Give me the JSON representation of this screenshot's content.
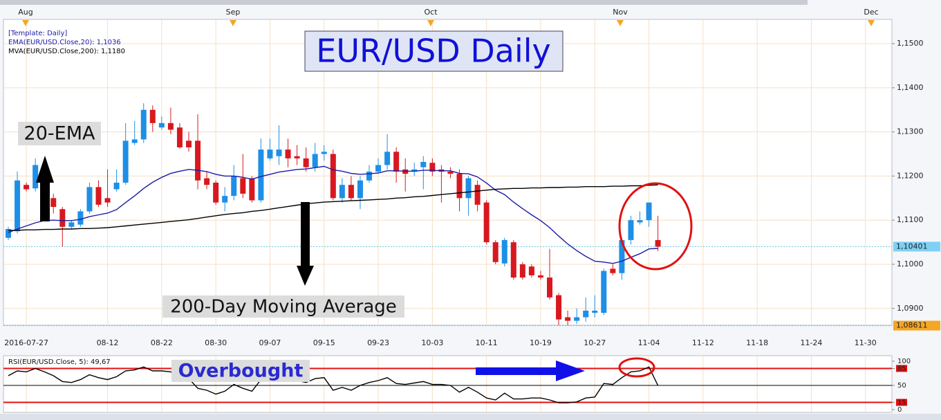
{
  "chart_data": [
    {
      "type": "candlestick",
      "title": "EUR/USD Daily",
      "template": "[Template: Daily]",
      "annotations": [
        "20-EMA",
        "200-Day Moving Average"
      ],
      "months": [
        "Aug",
        "Sep",
        "Oct",
        "Nov",
        "Dec"
      ],
      "up_color": "#1e8fe6",
      "down_color": "#d7191f",
      "categories": [
        null,
        null,
        "2016-07-27",
        null,
        null,
        null,
        null,
        null,
        null,
        null,
        null,
        "08-12",
        null,
        null,
        null,
        null,
        null,
        "08-22",
        null,
        null,
        null,
        null,
        null,
        "08-30",
        null,
        null,
        null,
        null,
        null,
        "09-07",
        null,
        null,
        null,
        null,
        null,
        "09-15",
        null,
        null,
        null,
        null,
        null,
        "09-23",
        null,
        null,
        null,
        null,
        null,
        "10-03",
        null,
        null,
        null,
        null,
        null,
        "10-11",
        null,
        null,
        null,
        null,
        null,
        "10-19",
        null,
        null,
        null,
        null,
        null,
        "10-27",
        null,
        null,
        null,
        null,
        null,
        "11-04",
        null,
        null,
        null,
        null,
        null,
        "11-12",
        null,
        null,
        null,
        null,
        null,
        "11-18",
        null,
        null,
        null,
        null,
        null,
        "11-24",
        null,
        null,
        null,
        null,
        null,
        "11-30",
        null
      ],
      "open": [
        1.106,
        1.1075,
        1.118,
        1.1172,
        1.1222,
        1.115,
        1.1125,
        1.1085,
        1.109,
        1.112,
        1.1175,
        1.115,
        1.117,
        1.1185,
        1.1275,
        1.1283,
        1.135,
        1.131,
        1.132,
        1.131,
        1.128,
        1.128,
        1.1195,
        1.1185,
        1.114,
        1.1155,
        1.1195,
        1.1195,
        1.1145,
        1.124,
        1.1245,
        1.126,
        1.1245,
        1.124,
        1.122,
        1.125,
        1.125,
        1.115,
        1.118,
        1.115,
        1.119,
        1.121,
        1.1225,
        1.1255,
        1.1215,
        1.121,
        1.122,
        1.123,
        1.1215,
        1.121,
        1.1205,
        1.115,
        1.118,
        1.114,
        1.105,
        1.1002,
        1.105,
        1.1,
        1.0995,
        1.0975,
        1.097,
        1.093,
        1.088,
        1.0872,
        1.088,
        1.089,
        1.089,
        1.099,
        1.098,
        1.1055,
        1.1095,
        1.11,
        1.1055,
        null,
        null,
        null,
        null,
        null,
        null,
        null,
        null,
        null,
        null,
        null,
        null,
        null,
        null,
        null,
        null,
        null,
        null,
        null,
        null,
        null,
        null,
        null,
        null
      ],
      "high": [
        1.1085,
        1.121,
        1.1185,
        1.124,
        1.1232,
        1.116,
        1.113,
        1.11,
        1.1125,
        1.1185,
        1.119,
        1.1215,
        1.1215,
        1.132,
        1.1325,
        1.1365,
        1.136,
        1.1335,
        1.1355,
        1.132,
        1.13,
        1.134,
        1.121,
        1.119,
        1.1175,
        1.1225,
        1.125,
        1.12,
        1.1285,
        1.1285,
        1.1315,
        1.1285,
        1.127,
        1.1265,
        1.1275,
        1.127,
        1.126,
        1.1195,
        1.12,
        1.12,
        1.1225,
        1.124,
        1.1295,
        1.1265,
        1.124,
        1.123,
        1.1245,
        1.124,
        1.1225,
        1.122,
        1.1215,
        1.12,
        1.119,
        1.1145,
        1.1055,
        1.106,
        1.1055,
        1.1005,
        1.1,
        1.0985,
        1.1035,
        1.0935,
        1.0895,
        1.09,
        1.0925,
        1.093,
        1.099,
        1.1,
        1.106,
        1.111,
        1.112,
        1.114,
        1.111,
        null,
        null,
        null,
        null,
        null,
        null,
        null,
        null,
        null,
        null,
        null,
        null,
        null,
        null,
        null,
        null,
        null,
        null,
        null,
        null,
        null,
        null,
        null,
        null
      ],
      "low": [
        1.1055,
        1.107,
        1.1165,
        1.1165,
        1.118,
        1.1115,
        1.104,
        1.108,
        1.1085,
        1.1115,
        1.113,
        1.113,
        1.1165,
        1.118,
        1.127,
        1.1275,
        1.13,
        1.1305,
        1.1295,
        1.1262,
        1.1255,
        1.117,
        1.117,
        1.1135,
        1.112,
        1.1145,
        1.115,
        1.114,
        1.114,
        1.1235,
        1.1225,
        1.122,
        1.1225,
        1.121,
        1.121,
        1.1235,
        1.1145,
        1.114,
        1.1145,
        1.1125,
        1.1185,
        1.1205,
        1.1215,
        1.1185,
        1.1165,
        1.12,
        1.117,
        1.12,
        1.114,
        1.1195,
        1.112,
        1.111,
        1.112,
        1.1045,
        1.1,
        1.0995,
        1.0965,
        1.0965,
        1.097,
        1.0965,
        1.092,
        1.0862,
        1.0862,
        1.0865,
        1.087,
        1.088,
        1.0885,
        1.0975,
        1.0965,
        1.1045,
        1.109,
        1.1085,
        1.103,
        null,
        null,
        null,
        null,
        null,
        null,
        null,
        null,
        null,
        null,
        null,
        null,
        null,
        null,
        null,
        null,
        null,
        null,
        null,
        null,
        null,
        null,
        null,
        null
      ],
      "close": [
        1.108,
        1.119,
        1.117,
        1.1225,
        1.12,
        1.113,
        1.1085,
        1.1095,
        1.112,
        1.1175,
        1.1135,
        1.114,
        1.1185,
        1.128,
        1.1283,
        1.135,
        1.132,
        1.132,
        1.1305,
        1.1265,
        1.1265,
        1.119,
        1.118,
        1.114,
        1.1155,
        1.12,
        1.116,
        1.1145,
        1.126,
        1.126,
        1.126,
        1.124,
        1.124,
        1.122,
        1.125,
        1.1255,
        1.115,
        1.118,
        1.115,
        1.119,
        1.121,
        1.1225,
        1.1255,
        1.121,
        1.1205,
        1.1215,
        1.1232,
        1.121,
        1.121,
        1.1205,
        1.115,
        1.1195,
        1.1135,
        1.105,
        1.1005,
        1.1055,
        1.097,
        1.097,
        1.0975,
        1.097,
        1.0925,
        1.0875,
        1.0872,
        1.088,
        1.0895,
        1.0895,
        1.0985,
        1.098,
        1.1055,
        1.11,
        1.11,
        1.114,
        1.104,
        null,
        null,
        null,
        null,
        null,
        null,
        null,
        null,
        null,
        null,
        null,
        null,
        null,
        null,
        null,
        null,
        null,
        null,
        null,
        null,
        null,
        null,
        null,
        null
      ],
      "series": [
        {
          "name": "EMA(EUR/USD.Close,20): 1,1036",
          "color": "#1a1aa8",
          "values": [
            1.1072,
            1.108,
            1.1087,
            1.1094,
            1.1099,
            1.11,
            1.1099,
            1.1099,
            1.1102,
            1.1108,
            1.1112,
            1.1116,
            1.1124,
            1.114,
            1.1155,
            1.1172,
            1.1186,
            1.1197,
            1.1206,
            1.1211,
            1.1215,
            1.1213,
            1.121,
            1.1204,
            1.12,
            1.12,
            1.1197,
            1.1193,
            1.1199,
            1.1204,
            1.1209,
            1.1212,
            1.1215,
            1.1216,
            1.1219,
            1.1222,
            1.1214,
            1.1211,
            1.1206,
            1.1204,
            1.1205,
            1.1207,
            1.1212,
            1.1212,
            1.1211,
            1.1211,
            1.1213,
            1.1213,
            1.1212,
            1.1212,
            1.1206,
            1.1205,
            1.1198,
            1.1184,
            1.1168,
            1.1158,
            1.1141,
            1.1126,
            1.1112,
            1.1099,
            1.1083,
            1.1064,
            1.1046,
            1.1031,
            1.1018,
            1.1007,
            1.1005,
            1.1002,
            1.1007,
            1.1016,
            1.1024,
            1.1035,
            1.1036,
            null,
            null,
            null,
            null,
            null,
            null,
            null,
            null,
            null,
            null,
            null,
            null,
            null,
            null,
            null,
            null,
            null,
            null,
            null,
            null,
            null,
            null,
            null,
            null
          ]
        },
        {
          "name": "MVA(EUR/USD.Close,200): 1,1180",
          "color": "#000000",
          "values": [
            1.1077,
            1.1077,
            1.1078,
            1.1078,
            1.1079,
            1.1079,
            1.108,
            1.108,
            1.1081,
            1.1081,
            1.1082,
            1.1083,
            1.1085,
            1.1087,
            1.1089,
            1.1091,
            1.1093,
            1.1095,
            1.1097,
            1.1099,
            1.1101,
            1.1104,
            1.1107,
            1.111,
            1.1113,
            1.1115,
            1.1117,
            1.112,
            1.1122,
            1.1125,
            1.1128,
            1.1131,
            1.1134,
            1.1137,
            1.1139,
            1.1141,
            1.1142,
            1.1143,
            1.1144,
            1.1145,
            1.1146,
            1.1147,
            1.1148,
            1.115,
            1.1151,
            1.1153,
            1.1154,
            1.1156,
            1.1158,
            1.116,
            1.1162,
            1.1164,
            1.1166,
            1.1168,
            1.117,
            1.1171,
            1.1172,
            1.1172,
            1.1173,
            1.1173,
            1.1174,
            1.1174,
            1.1175,
            1.1175,
            1.1176,
            1.1176,
            1.1176,
            1.1177,
            1.1177,
            1.1178,
            1.1178,
            1.1179,
            1.118,
            null,
            null,
            null,
            null,
            null,
            null,
            null,
            null,
            null,
            null,
            null,
            null,
            null,
            null,
            null,
            null,
            null,
            null,
            null,
            null,
            null,
            null,
            null,
            null
          ]
        }
      ],
      "price_markers": [
        {
          "value": 1.10401,
          "label": "1,10401",
          "color": "#7fd0f5"
        },
        {
          "value": 1.08611,
          "label": "1,08611",
          "color": "#f5a623"
        }
      ],
      "ylim": [
        1.0862,
        1.1555
      ],
      "yticks": [
        {
          "value": 1.09,
          "label": "1,0900"
        },
        {
          "value": 1.1,
          "label": "1,1000"
        },
        {
          "value": 1.11,
          "label": "1,1100"
        },
        {
          "value": 1.12,
          "label": "1,1200"
        },
        {
          "value": 1.13,
          "label": "1,1300"
        },
        {
          "value": 1.14,
          "label": "1,1400"
        },
        {
          "value": 1.15,
          "label": "1,1500"
        }
      ],
      "grid": true
    },
    {
      "type": "line",
      "title": "RSI(EUR/USD.Close, 5): 49,67",
      "annotation": "Overbought",
      "color": "#000000",
      "values": [
        70,
        80,
        78,
        85,
        78,
        70,
        58,
        56,
        62,
        72,
        66,
        62,
        68,
        80,
        82,
        88,
        80,
        80,
        78,
        68,
        64,
        44,
        40,
        32,
        38,
        52,
        44,
        38,
        62,
        66,
        66,
        60,
        60,
        56,
        64,
        66,
        40,
        46,
        40,
        50,
        56,
        60,
        66,
        54,
        52,
        55,
        58,
        52,
        52,
        50,
        36,
        46,
        36,
        24,
        20,
        34,
        22,
        22,
        24,
        24,
        20,
        14,
        14,
        16,
        24,
        26,
        54,
        52,
        66,
        78,
        80,
        88,
        49.67
      ],
      "levels": [
        {
          "value": 85,
          "color": "#e01010"
        },
        {
          "value": 50,
          "color": "#000000"
        },
        {
          "value": 15,
          "color": "#e01010"
        }
      ],
      "ylim": [
        0,
        100
      ],
      "yticks": [
        0,
        15,
        50,
        85,
        100
      ]
    }
  ]
}
